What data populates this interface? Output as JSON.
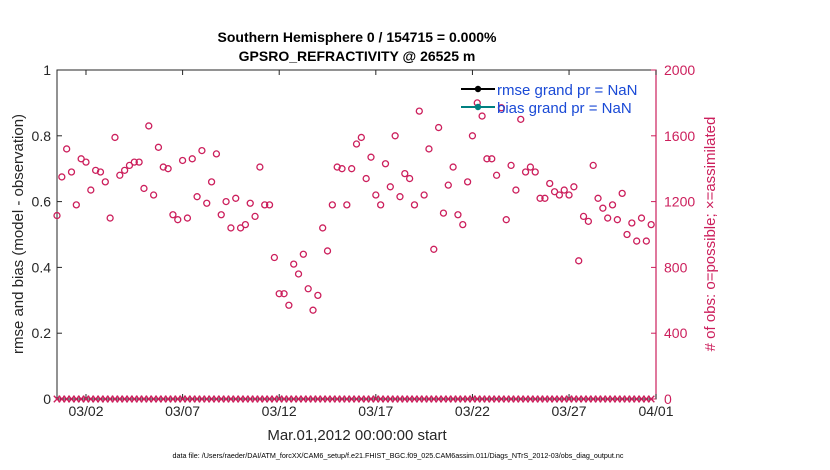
{
  "chart_data": {
    "type": "scatter",
    "title": [
      "Southern Hemisphere 0 / 154715 = 0.000%",
      "GPSRO_REFRACTIVITY @ 26525 m"
    ],
    "xlabel": "Mar.01,2012 00:00:00 start",
    "ylabel_left": "rmse and bias (model - observation)",
    "ylabel_right": "# of obs: o=possible; ×=assimilated",
    "footer": "data file: /Users/raeder/DAI/ATM_forcXX/CAM6_setup/f.e21.FHIST_BGC.f09_025.CAM6assim.011/Diags_NTrS_2012-03/obs_diag_output.nc",
    "xlim": [
      0.5,
      31.5
    ],
    "ylim_left": [
      0,
      1
    ],
    "ylim_right": [
      0,
      2000
    ],
    "xticks": [
      {
        "value": 2,
        "label": "03/02"
      },
      {
        "value": 7,
        "label": "03/07"
      },
      {
        "value": 12,
        "label": "03/12"
      },
      {
        "value": 17,
        "label": "03/17"
      },
      {
        "value": 22,
        "label": "03/22"
      },
      {
        "value": 27,
        "label": "03/27"
      },
      {
        "value": 32,
        "label": "04/01"
      }
    ],
    "yticks_left": [
      0,
      0.2,
      0.4,
      0.6,
      0.8,
      1
    ],
    "yticks_right": [
      0,
      400,
      800,
      1200,
      1600,
      2000
    ],
    "legend": [
      {
        "label": "rmse grand pr = NaN",
        "color": "#000000"
      },
      {
        "label": "bias grand pr = NaN",
        "color": "#008080"
      }
    ],
    "colors": {
      "obs": "#cc1f5c",
      "axis": "#262626"
    },
    "series": [
      {
        "name": "possible",
        "marker": "o",
        "points": [
          [
            0.5,
            1115
          ],
          [
            0.75,
            1350
          ],
          [
            1.0,
            1520
          ],
          [
            1.25,
            1380
          ],
          [
            1.5,
            1180
          ],
          [
            1.75,
            1460
          ],
          [
            2.0,
            1440
          ],
          [
            2.25,
            1270
          ],
          [
            2.5,
            1390
          ],
          [
            2.75,
            1380
          ],
          [
            3.0,
            1320
          ],
          [
            3.25,
            1100
          ],
          [
            3.5,
            1590
          ],
          [
            3.75,
            1360
          ],
          [
            4.0,
            1390
          ],
          [
            4.25,
            1420
          ],
          [
            4.5,
            1440
          ],
          [
            4.75,
            1440
          ],
          [
            5.0,
            1280
          ],
          [
            5.25,
            1660
          ],
          [
            5.5,
            1240
          ],
          [
            5.75,
            1530
          ],
          [
            6.0,
            1410
          ],
          [
            6.25,
            1400
          ],
          [
            6.5,
            1120
          ],
          [
            6.75,
            1090
          ],
          [
            7.0,
            1450
          ],
          [
            7.25,
            1100
          ],
          [
            7.5,
            1460
          ],
          [
            7.75,
            1230
          ],
          [
            8.0,
            1510
          ],
          [
            8.25,
            1190
          ],
          [
            8.5,
            1320
          ],
          [
            8.75,
            1490
          ],
          [
            9.0,
            1120
          ],
          [
            9.25,
            1200
          ],
          [
            9.5,
            1040
          ],
          [
            9.75,
            1220
          ],
          [
            10.0,
            1040
          ],
          [
            10.25,
            1060
          ],
          [
            10.5,
            1190
          ],
          [
            10.75,
            1110
          ],
          [
            11.0,
            1410
          ],
          [
            11.25,
            1180
          ],
          [
            11.5,
            1180
          ],
          [
            11.75,
            860
          ],
          [
            12.0,
            640
          ],
          [
            12.25,
            640
          ],
          [
            12.5,
            570
          ],
          [
            12.75,
            820
          ],
          [
            13.0,
            760
          ],
          [
            13.25,
            880
          ],
          [
            13.5,
            670
          ],
          [
            13.75,
            540
          ],
          [
            14.0,
            630
          ],
          [
            14.25,
            1040
          ],
          [
            14.5,
            900
          ],
          [
            14.75,
            1180
          ],
          [
            15.0,
            1410
          ],
          [
            15.25,
            1400
          ],
          [
            15.5,
            1180
          ],
          [
            15.75,
            1400
          ],
          [
            16.0,
            1550
          ],
          [
            16.25,
            1590
          ],
          [
            16.5,
            1340
          ],
          [
            16.75,
            1470
          ],
          [
            17.0,
            1240
          ],
          [
            17.25,
            1180
          ],
          [
            17.5,
            1430
          ],
          [
            17.75,
            1290
          ],
          [
            18.0,
            1600
          ],
          [
            18.25,
            1230
          ],
          [
            18.5,
            1370
          ],
          [
            18.75,
            1340
          ],
          [
            19.0,
            1180
          ],
          [
            19.25,
            1750
          ],
          [
            19.5,
            1240
          ],
          [
            19.75,
            1520
          ],
          [
            20.0,
            910
          ],
          [
            20.25,
            1650
          ],
          [
            20.5,
            1130
          ],
          [
            20.75,
            1300
          ],
          [
            21.0,
            1410
          ],
          [
            21.25,
            1120
          ],
          [
            21.5,
            1060
          ],
          [
            21.75,
            1320
          ],
          [
            22.0,
            1600
          ],
          [
            22.25,
            1800
          ],
          [
            22.5,
            1720
          ],
          [
            22.75,
            1460
          ],
          [
            23.0,
            1460
          ],
          [
            23.25,
            1360
          ],
          [
            23.5,
            1770
          ],
          [
            23.75,
            1090
          ],
          [
            24.0,
            1420
          ],
          [
            24.25,
            1270
          ],
          [
            24.5,
            1700
          ],
          [
            24.75,
            1380
          ],
          [
            25.0,
            1410
          ],
          [
            25.25,
            1380
          ],
          [
            25.5,
            1220
          ],
          [
            25.75,
            1220
          ],
          [
            26.0,
            1310
          ],
          [
            26.25,
            1260
          ],
          [
            26.5,
            1240
          ],
          [
            26.75,
            1270
          ],
          [
            27.0,
            1240
          ],
          [
            27.25,
            1290
          ],
          [
            27.5,
            840
          ],
          [
            27.75,
            1110
          ],
          [
            28.0,
            1080
          ],
          [
            28.25,
            1420
          ],
          [
            28.5,
            1220
          ],
          [
            28.75,
            1160
          ],
          [
            29.0,
            1100
          ],
          [
            29.25,
            1180
          ],
          [
            29.5,
            1090
          ],
          [
            29.75,
            1250
          ],
          [
            30.0,
            1000
          ],
          [
            30.25,
            1070
          ],
          [
            30.5,
            960
          ],
          [
            30.75,
            1100
          ],
          [
            31.0,
            960
          ],
          [
            31.25,
            1060
          ]
        ]
      },
      {
        "name": "assimilated",
        "marker": "x",
        "points": [
          [
            0.5,
            0
          ],
          [
            0.75,
            0
          ],
          [
            1.0,
            0
          ],
          [
            1.25,
            0
          ],
          [
            1.5,
            0
          ],
          [
            1.75,
            0
          ],
          [
            2.0,
            0
          ],
          [
            2.25,
            0
          ],
          [
            2.5,
            0
          ],
          [
            2.75,
            0
          ],
          [
            3.0,
            0
          ],
          [
            3.25,
            0
          ],
          [
            3.5,
            0
          ],
          [
            3.75,
            0
          ],
          [
            4.0,
            0
          ],
          [
            4.25,
            0
          ],
          [
            4.5,
            0
          ],
          [
            4.75,
            0
          ],
          [
            5.0,
            0
          ],
          [
            5.25,
            0
          ],
          [
            5.5,
            0
          ],
          [
            5.75,
            0
          ],
          [
            6.0,
            0
          ],
          [
            6.25,
            0
          ],
          [
            6.5,
            0
          ],
          [
            6.75,
            0
          ],
          [
            7.0,
            0
          ],
          [
            7.25,
            0
          ],
          [
            7.5,
            0
          ],
          [
            7.75,
            0
          ],
          [
            8.0,
            0
          ],
          [
            8.25,
            0
          ],
          [
            8.5,
            0
          ],
          [
            8.75,
            0
          ],
          [
            9.0,
            0
          ],
          [
            9.25,
            0
          ],
          [
            9.5,
            0
          ],
          [
            9.75,
            0
          ],
          [
            10.0,
            0
          ],
          [
            10.25,
            0
          ],
          [
            10.5,
            0
          ],
          [
            10.75,
            0
          ],
          [
            11.0,
            0
          ],
          [
            11.25,
            0
          ],
          [
            11.5,
            0
          ],
          [
            11.75,
            0
          ],
          [
            12.0,
            0
          ],
          [
            12.25,
            0
          ],
          [
            12.5,
            0
          ],
          [
            12.75,
            0
          ],
          [
            13.0,
            0
          ],
          [
            13.25,
            0
          ],
          [
            13.5,
            0
          ],
          [
            13.75,
            0
          ],
          [
            14.0,
            0
          ],
          [
            14.25,
            0
          ],
          [
            14.5,
            0
          ],
          [
            14.75,
            0
          ],
          [
            15.0,
            0
          ],
          [
            15.25,
            0
          ],
          [
            15.5,
            0
          ],
          [
            15.75,
            0
          ],
          [
            16.0,
            0
          ],
          [
            16.25,
            0
          ],
          [
            16.5,
            0
          ],
          [
            16.75,
            0
          ],
          [
            17.0,
            0
          ],
          [
            17.25,
            0
          ],
          [
            17.5,
            0
          ],
          [
            17.75,
            0
          ],
          [
            18.0,
            0
          ],
          [
            18.25,
            0
          ],
          [
            18.5,
            0
          ],
          [
            18.75,
            0
          ],
          [
            19.0,
            0
          ],
          [
            19.25,
            0
          ],
          [
            19.5,
            0
          ],
          [
            19.75,
            0
          ],
          [
            20.0,
            0
          ],
          [
            20.25,
            0
          ],
          [
            20.5,
            0
          ],
          [
            20.75,
            0
          ],
          [
            21.0,
            0
          ],
          [
            21.25,
            0
          ],
          [
            21.5,
            0
          ],
          [
            21.75,
            0
          ],
          [
            22.0,
            0
          ],
          [
            22.25,
            0
          ],
          [
            22.5,
            0
          ],
          [
            22.75,
            0
          ],
          [
            23.0,
            0
          ],
          [
            23.25,
            0
          ],
          [
            23.5,
            0
          ],
          [
            23.75,
            0
          ],
          [
            24.0,
            0
          ],
          [
            24.25,
            0
          ],
          [
            24.5,
            0
          ],
          [
            24.75,
            0
          ],
          [
            25.0,
            0
          ],
          [
            25.25,
            0
          ],
          [
            25.5,
            0
          ],
          [
            25.75,
            0
          ],
          [
            26.0,
            0
          ],
          [
            26.25,
            0
          ],
          [
            26.5,
            0
          ],
          [
            26.75,
            0
          ],
          [
            27.0,
            0
          ],
          [
            27.25,
            0
          ],
          [
            27.5,
            0
          ],
          [
            27.75,
            0
          ],
          [
            28.0,
            0
          ],
          [
            28.25,
            0
          ],
          [
            28.5,
            0
          ],
          [
            28.75,
            0
          ],
          [
            29.0,
            0
          ],
          [
            29.25,
            0
          ],
          [
            29.5,
            0
          ],
          [
            29.75,
            0
          ],
          [
            30.0,
            0
          ],
          [
            30.25,
            0
          ],
          [
            30.5,
            0
          ],
          [
            30.75,
            0
          ],
          [
            31.0,
            0
          ],
          [
            31.25,
            0
          ]
        ]
      }
    ]
  }
}
